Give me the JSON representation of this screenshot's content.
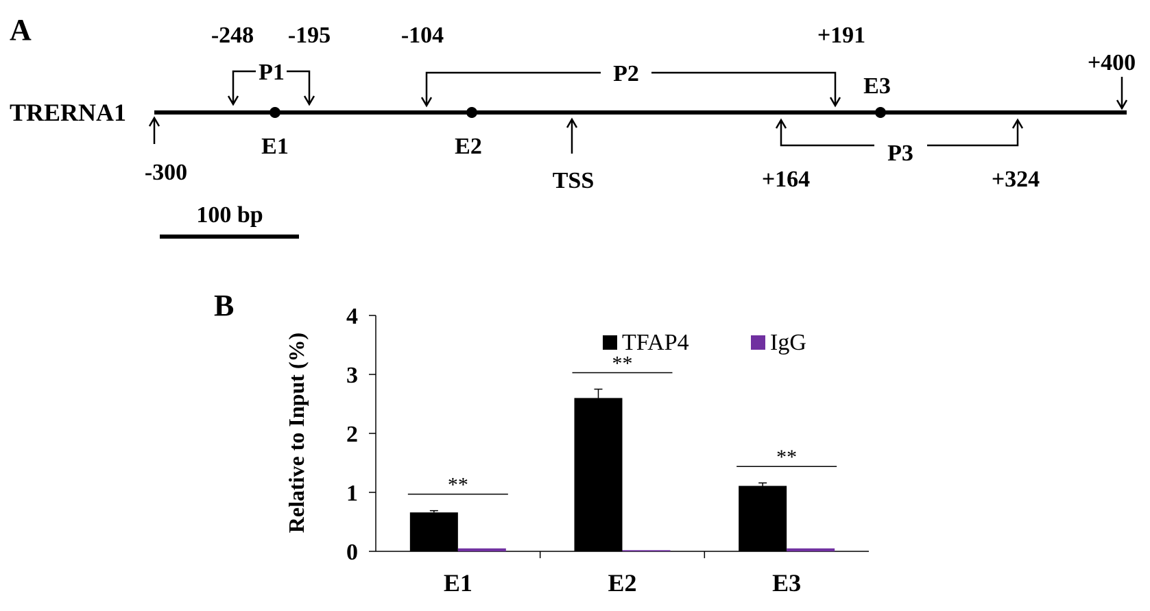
{
  "panel_a": {
    "label": "A",
    "gene_name": "TRERNA1",
    "scale_bar_label": "100 bp",
    "positions": {
      "start": "-300",
      "p1_left": "-248",
      "p1_right": "-195",
      "p2_left": "-104",
      "p2_right": "+191",
      "p3_left": "+164",
      "p3_right": "+324",
      "end": "+400"
    },
    "primers": {
      "p1": "P1",
      "p2": "P2",
      "p3": "P3"
    },
    "elements": {
      "e1": "E1",
      "e2": "E2",
      "e3": "E3"
    },
    "tss": "TSS"
  },
  "panel_b": {
    "label": "B",
    "significance": [
      "**",
      "**",
      "**"
    ]
  },
  "chart_data": {
    "type": "bar",
    "categories": [
      "E1",
      "E2",
      "E3"
    ],
    "series": [
      {
        "name": "TFAP4",
        "values": [
          0.66,
          2.6,
          1.11
        ],
        "errors": [
          0.03,
          0.15,
          0.05
        ],
        "color": "#000000"
      },
      {
        "name": "IgG",
        "values": [
          0.05,
          0.02,
          0.05
        ],
        "errors": [
          0.01,
          0.01,
          0.01
        ],
        "color": "#7030a0"
      }
    ],
    "title": "",
    "xlabel": "",
    "ylabel": "Relative to Input  (%)",
    "ylim": [
      0,
      4
    ],
    "yticks": [
      0,
      1,
      2,
      3,
      4
    ],
    "grid": false,
    "legend": "top-center"
  }
}
